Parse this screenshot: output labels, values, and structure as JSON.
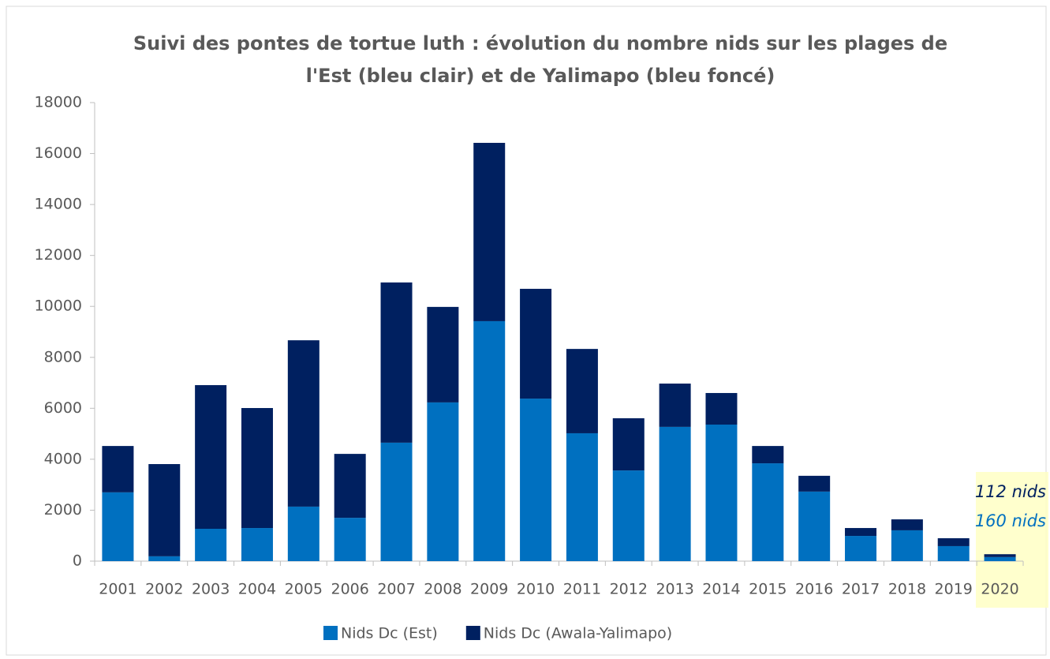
{
  "chart_data": {
    "type": "stacked_bar",
    "title": [
      "Suivi des pontes de tortue luth : évolution du nombre nids sur les plages de",
      "l'Est (bleu clair) et de Yalimapo (bleu foncé)"
    ],
    "categories": [
      "2001",
      "2002",
      "2003",
      "2004",
      "2005",
      "2006",
      "2007",
      "2008",
      "2009",
      "2010",
      "2011",
      "2012",
      "2013",
      "2014",
      "2015",
      "2016",
      "2017",
      "2018",
      "2019",
      "2020"
    ],
    "series": [
      {
        "name": "Nids Dc (Est)",
        "color": "#0070c0",
        "values": [
          2700,
          190,
          1270,
          1300,
          2140,
          1700,
          4650,
          6230,
          9420,
          6380,
          5020,
          3560,
          5270,
          5360,
          3840,
          2730,
          990,
          1210,
          590,
          160
        ]
      },
      {
        "name": "Nids Dc (Awala-Yalimapo)",
        "color": "#002060",
        "values": [
          1820,
          3620,
          5640,
          4710,
          6530,
          2510,
          6290,
          3750,
          7000,
          4310,
          3310,
          2050,
          1700,
          1240,
          680,
          620,
          310,
          430,
          310,
          112
        ]
      }
    ],
    "annotations": [
      {
        "text": "112 nids",
        "color": "#002060"
      },
      {
        "text": "160 nids",
        "color": "#0070c0"
      }
    ],
    "ylim": [
      0,
      18000
    ],
    "yticks": [
      0,
      2000,
      4000,
      6000,
      8000,
      10000,
      12000,
      14000,
      16000,
      18000
    ],
    "legend": "bottom",
    "grid": false
  }
}
